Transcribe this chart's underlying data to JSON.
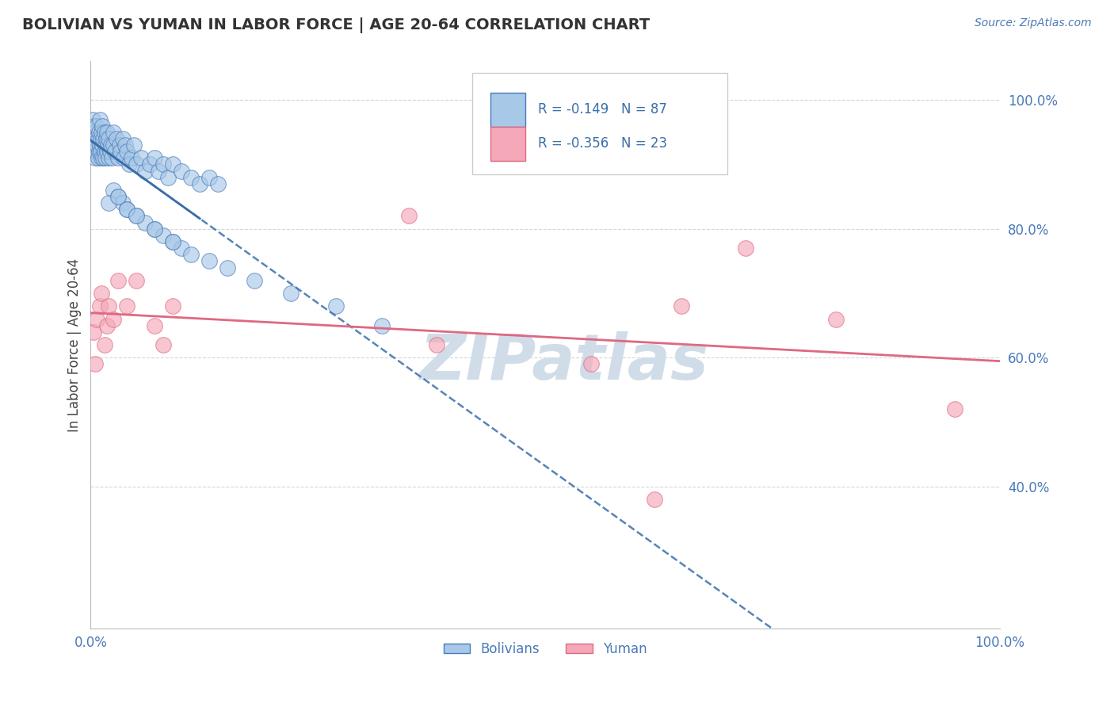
{
  "title": "BOLIVIAN VS YUMAN IN LABOR FORCE | AGE 20-64 CORRELATION CHART",
  "ylabel": "In Labor Force | Age 20-64",
  "source_text": "Source: ZipAtlas.com",
  "r_bolivian": -0.149,
  "n_bolivian": 87,
  "r_yuman": -0.356,
  "n_yuman": 23,
  "bolivian_fill": "#a8c8e8",
  "yuman_fill": "#f4a8b8",
  "bolivian_edge": "#4a7ab8",
  "yuman_edge": "#e06880",
  "bolivian_line_color": "#3a6eaa",
  "yuman_line_color": "#e06880",
  "background_color": "#ffffff",
  "grid_color": "#cccccc",
  "title_color": "#333333",
  "axis_label_color": "#444444",
  "tick_color": "#4a7ab8",
  "legend_text_color": "#3a6eaa",
  "watermark_color": "#d0dde8",
  "xlim": [
    0.0,
    1.0
  ],
  "ylim": [
    0.18,
    1.06
  ],
  "yticks": [
    0.4,
    0.6,
    0.8,
    1.0
  ],
  "xticks_show": [
    0.0,
    1.0
  ],
  "bolivian_x": [
    0.002,
    0.003,
    0.004,
    0.005,
    0.005,
    0.006,
    0.006,
    0.007,
    0.007,
    0.008,
    0.008,
    0.009,
    0.009,
    0.01,
    0.01,
    0.011,
    0.011,
    0.012,
    0.012,
    0.013,
    0.013,
    0.014,
    0.014,
    0.015,
    0.015,
    0.016,
    0.016,
    0.017,
    0.018,
    0.018,
    0.019,
    0.02,
    0.02,
    0.021,
    0.022,
    0.023,
    0.025,
    0.025,
    0.027,
    0.028,
    0.03,
    0.032,
    0.033,
    0.035,
    0.036,
    0.038,
    0.04,
    0.042,
    0.045,
    0.048,
    0.05,
    0.055,
    0.06,
    0.065,
    0.07,
    0.075,
    0.08,
    0.085,
    0.09,
    0.1,
    0.11,
    0.12,
    0.13,
    0.14,
    0.025,
    0.03,
    0.035,
    0.04,
    0.05,
    0.06,
    0.07,
    0.08,
    0.09,
    0.1,
    0.02,
    0.03,
    0.04,
    0.05,
    0.07,
    0.09,
    0.11,
    0.13,
    0.15,
    0.18,
    0.22,
    0.27,
    0.32
  ],
  "bolivian_y": [
    0.97,
    0.93,
    0.96,
    0.91,
    0.95,
    0.92,
    0.94,
    0.93,
    0.96,
    0.91,
    0.94,
    0.92,
    0.95,
    0.93,
    0.97,
    0.92,
    0.94,
    0.91,
    0.95,
    0.93,
    0.96,
    0.91,
    0.94,
    0.92,
    0.95,
    0.93,
    0.91,
    0.94,
    0.92,
    0.95,
    0.93,
    0.91,
    0.94,
    0.92,
    0.93,
    0.91,
    0.93,
    0.95,
    0.92,
    0.94,
    0.91,
    0.93,
    0.92,
    0.94,
    0.91,
    0.93,
    0.92,
    0.9,
    0.91,
    0.93,
    0.9,
    0.91,
    0.89,
    0.9,
    0.91,
    0.89,
    0.9,
    0.88,
    0.9,
    0.89,
    0.88,
    0.87,
    0.88,
    0.87,
    0.86,
    0.85,
    0.84,
    0.83,
    0.82,
    0.81,
    0.8,
    0.79,
    0.78,
    0.77,
    0.84,
    0.85,
    0.83,
    0.82,
    0.8,
    0.78,
    0.76,
    0.75,
    0.74,
    0.72,
    0.7,
    0.68,
    0.65
  ],
  "yuman_x": [
    0.003,
    0.005,
    0.007,
    0.01,
    0.012,
    0.015,
    0.018,
    0.02,
    0.025,
    0.03,
    0.04,
    0.05,
    0.07,
    0.08,
    0.09,
    0.35,
    0.38,
    0.55,
    0.62,
    0.65,
    0.72,
    0.82,
    0.95
  ],
  "yuman_y": [
    0.64,
    0.59,
    0.66,
    0.68,
    0.7,
    0.62,
    0.65,
    0.68,
    0.66,
    0.72,
    0.68,
    0.72,
    0.65,
    0.62,
    0.68,
    0.82,
    0.62,
    0.59,
    0.38,
    0.68,
    0.77,
    0.66,
    0.52
  ]
}
